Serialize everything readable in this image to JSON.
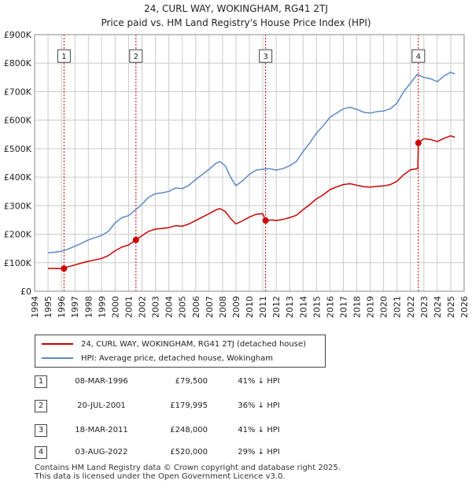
{
  "header": {
    "title": "24, CURL WAY, WOKINGHAM, RG41 2TJ",
    "subtitle": "Price paid vs. HM Land Registry's House Price Index (HPI)"
  },
  "colors": {
    "property": "#cc0000",
    "hpi": "#5b8ac6",
    "grid": "#cccccc",
    "marker_line": "#cc0000"
  },
  "chart_data": {
    "type": "line",
    "title": "Price paid vs. HM Land Registry's House Price Index (HPI)",
    "xlim": [
      1994,
      2026
    ],
    "ylim": [
      0,
      900000
    ],
    "x_ticks": [
      "1994",
      "1995",
      "1996",
      "1997",
      "1998",
      "1999",
      "2000",
      "2001",
      "2002",
      "2003",
      "2004",
      "2005",
      "2006",
      "2007",
      "2008",
      "2009",
      "2010",
      "2011",
      "2012",
      "2013",
      "2014",
      "2015",
      "2016",
      "2017",
      "2018",
      "2019",
      "2020",
      "2021",
      "2022",
      "2023",
      "2024",
      "2025",
      "2026"
    ],
    "y_ticks": [
      {
        "value": 0,
        "label": "£0"
      },
      {
        "value": 100000,
        "label": "£100K"
      },
      {
        "value": 200000,
        "label": "£200K"
      },
      {
        "value": 300000,
        "label": "£300K"
      },
      {
        "value": 400000,
        "label": "£400K"
      },
      {
        "value": 500000,
        "label": "£500K"
      },
      {
        "value": 600000,
        "label": "£600K"
      },
      {
        "value": 700000,
        "label": "£700K"
      },
      {
        "value": 800000,
        "label": "£800K"
      },
      {
        "value": 900000,
        "label": "£900K"
      }
    ],
    "series": [
      {
        "name": "HPI: Average price, detached house, Wokingham",
        "color": "#5b8ac6",
        "points": [
          [
            1995.0,
            135000
          ],
          [
            1995.5,
            137000
          ],
          [
            1996.0,
            140000
          ],
          [
            1996.5,
            148000
          ],
          [
            1997.0,
            158000
          ],
          [
            1997.5,
            168000
          ],
          [
            1998.0,
            180000
          ],
          [
            1998.5,
            188000
          ],
          [
            1999.0,
            196000
          ],
          [
            1999.5,
            210000
          ],
          [
            2000.0,
            240000
          ],
          [
            2000.5,
            258000
          ],
          [
            2001.0,
            265000
          ],
          [
            2001.5,
            285000
          ],
          [
            2002.0,
            305000
          ],
          [
            2002.5,
            330000
          ],
          [
            2003.0,
            342000
          ],
          [
            2003.5,
            345000
          ],
          [
            2004.0,
            350000
          ],
          [
            2004.5,
            362000
          ],
          [
            2005.0,
            360000
          ],
          [
            2005.5,
            372000
          ],
          [
            2006.0,
            392000
          ],
          [
            2006.5,
            410000
          ],
          [
            2007.0,
            428000
          ],
          [
            2007.5,
            448000
          ],
          [
            2007.8,
            455000
          ],
          [
            2008.2,
            440000
          ],
          [
            2008.6,
            400000
          ],
          [
            2009.0,
            370000
          ],
          [
            2009.5,
            388000
          ],
          [
            2010.0,
            410000
          ],
          [
            2010.5,
            425000
          ],
          [
            2011.0,
            428000
          ],
          [
            2011.5,
            430000
          ],
          [
            2012.0,
            425000
          ],
          [
            2012.5,
            430000
          ],
          [
            2013.0,
            440000
          ],
          [
            2013.5,
            455000
          ],
          [
            2014.0,
            490000
          ],
          [
            2014.5,
            520000
          ],
          [
            2015.0,
            555000
          ],
          [
            2015.5,
            580000
          ],
          [
            2016.0,
            610000
          ],
          [
            2016.5,
            625000
          ],
          [
            2017.0,
            640000
          ],
          [
            2017.5,
            645000
          ],
          [
            2018.0,
            638000
          ],
          [
            2018.5,
            628000
          ],
          [
            2019.0,
            625000
          ],
          [
            2019.5,
            630000
          ],
          [
            2020.0,
            632000
          ],
          [
            2020.5,
            640000
          ],
          [
            2021.0,
            660000
          ],
          [
            2021.5,
            700000
          ],
          [
            2022.0,
            730000
          ],
          [
            2022.5,
            760000
          ],
          [
            2023.0,
            750000
          ],
          [
            2023.5,
            745000
          ],
          [
            2024.0,
            735000
          ],
          [
            2024.5,
            755000
          ],
          [
            2025.0,
            768000
          ],
          [
            2025.3,
            762000
          ]
        ]
      },
      {
        "name": "24, CURL WAY, WOKINGHAM, RG41 2TJ (detached house)",
        "color": "#cc0000",
        "points": [
          [
            1995.0,
            80000
          ],
          [
            1996.0,
            79500
          ],
          [
            1996.5,
            86000
          ],
          [
            1997.0,
            92000
          ],
          [
            1997.5,
            99000
          ],
          [
            1998.0,
            105000
          ],
          [
            1998.5,
            110000
          ],
          [
            1999.0,
            115000
          ],
          [
            1999.5,
            125000
          ],
          [
            2000.0,
            142000
          ],
          [
            2000.5,
            155000
          ],
          [
            2001.0,
            162000
          ],
          [
            2001.55,
            179995
          ],
          [
            2002.0,
            195000
          ],
          [
            2002.5,
            210000
          ],
          [
            2003.0,
            218000
          ],
          [
            2003.5,
            220000
          ],
          [
            2004.0,
            223000
          ],
          [
            2004.5,
            230000
          ],
          [
            2005.0,
            228000
          ],
          [
            2005.5,
            236000
          ],
          [
            2006.0,
            248000
          ],
          [
            2006.5,
            260000
          ],
          [
            2007.0,
            272000
          ],
          [
            2007.5,
            285000
          ],
          [
            2007.8,
            290000
          ],
          [
            2008.2,
            280000
          ],
          [
            2008.6,
            255000
          ],
          [
            2009.0,
            236000
          ],
          [
            2009.5,
            247000
          ],
          [
            2010.0,
            260000
          ],
          [
            2010.5,
            270000
          ],
          [
            2011.0,
            272000
          ],
          [
            2011.21,
            248000
          ],
          [
            2011.7,
            250000
          ],
          [
            2012.0,
            248000
          ],
          [
            2012.5,
            252000
          ],
          [
            2013.0,
            258000
          ],
          [
            2013.5,
            266000
          ],
          [
            2014.0,
            286000
          ],
          [
            2014.5,
            304000
          ],
          [
            2015.0,
            324000
          ],
          [
            2015.5,
            338000
          ],
          [
            2016.0,
            356000
          ],
          [
            2016.5,
            366000
          ],
          [
            2017.0,
            374000
          ],
          [
            2017.5,
            377000
          ],
          [
            2018.0,
            372000
          ],
          [
            2018.5,
            367000
          ],
          [
            2019.0,
            365000
          ],
          [
            2019.5,
            368000
          ],
          [
            2020.0,
            369000
          ],
          [
            2020.5,
            374000
          ],
          [
            2021.0,
            386000
          ],
          [
            2021.5,
            409000
          ],
          [
            2022.0,
            426000
          ],
          [
            2022.55,
            430000
          ],
          [
            2022.59,
            520000
          ],
          [
            2023.0,
            535000
          ],
          [
            2023.5,
            532000
          ],
          [
            2024.0,
            525000
          ],
          [
            2024.5,
            536000
          ],
          [
            2025.0,
            545000
          ],
          [
            2025.3,
            540000
          ]
        ]
      }
    ],
    "sales": [
      {
        "id": "1",
        "x": 1996.19,
        "y": 79500
      },
      {
        "id": "2",
        "x": 2001.55,
        "y": 179995
      },
      {
        "id": "3",
        "x": 2011.21,
        "y": 248000
      },
      {
        "id": "4",
        "x": 2022.59,
        "y": 520000
      }
    ]
  },
  "legend": {
    "property_label": "24, CURL WAY, WOKINGHAM, RG41 2TJ (detached house)",
    "hpi_label": "HPI: Average price, detached house, Wokingham"
  },
  "transactions": [
    {
      "id": "1",
      "date": "08-MAR-1996",
      "price": "£79,500",
      "hpi": "41% ↓ HPI"
    },
    {
      "id": "2",
      "date": "20-JUL-2001",
      "price": "£179,995",
      "hpi": "36% ↓ HPI"
    },
    {
      "id": "3",
      "date": "18-MAR-2011",
      "price": "£248,000",
      "hpi": "41% ↓ HPI"
    },
    {
      "id": "4",
      "date": "03-AUG-2022",
      "price": "£520,000",
      "hpi": "29% ↓ HPI"
    }
  ],
  "footer": {
    "line1": "Contains HM Land Registry data © Crown copyright and database right 2025.",
    "line2": "This data is licensed under the Open Government Licence v3.0."
  }
}
